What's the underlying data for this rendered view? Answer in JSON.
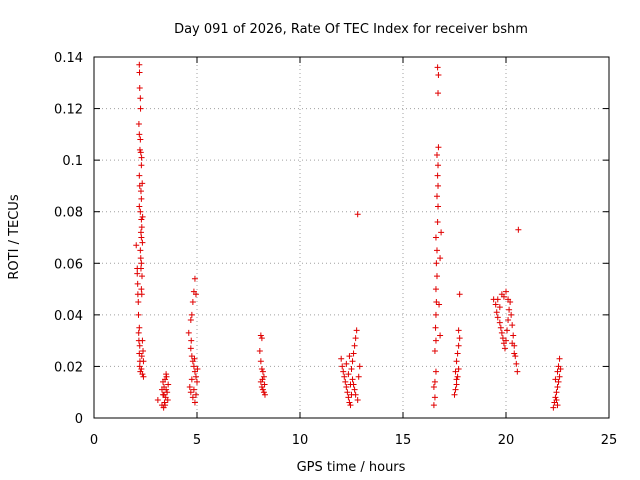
{
  "chart_data": {
    "type": "scatter",
    "title": "Day 091 of 2026, Rate Of TEC Index for receiver bshm",
    "xlabel": "GPS time / hours",
    "ylabel": "ROTI / TECUs",
    "xlim": [
      0,
      25
    ],
    "ylim": [
      0,
      0.14
    ],
    "xticks": [
      0,
      5,
      10,
      15,
      20,
      25
    ],
    "yticks": [
      0,
      0.02,
      0.04,
      0.06,
      0.08,
      0.1,
      0.12,
      0.14
    ],
    "xtick_labels": [
      "0",
      "5",
      "10",
      "15",
      "20",
      "25"
    ],
    "ytick_labels": [
      "0",
      "0.02",
      "0.04",
      "0.06",
      "0.08",
      "0.1",
      "0.12",
      "0.14"
    ],
    "grid": true,
    "marker": "+",
    "color": "#e00000",
    "series": [
      {
        "points": [
          [
            2.05,
            0.067
          ],
          [
            2.1,
            0.058
          ],
          [
            2.12,
            0.052
          ],
          [
            2.15,
            0.045
          ],
          [
            2.18,
            0.03
          ],
          [
            2.2,
            0.025
          ],
          [
            2.22,
            0.02
          ],
          [
            2.25,
            0.018
          ],
          [
            2.1,
            0.056
          ],
          [
            2.13,
            0.048
          ],
          [
            2.16,
            0.04
          ],
          [
            2.2,
            0.035
          ],
          [
            2.22,
            0.028
          ],
          [
            2.17,
            0.033
          ],
          [
            2.23,
            0.022
          ],
          [
            2.2,
            0.137
          ],
          [
            2.21,
            0.134
          ],
          [
            2.22,
            0.128
          ],
          [
            2.25,
            0.124
          ],
          [
            2.26,
            0.12
          ],
          [
            2.18,
            0.114
          ],
          [
            2.2,
            0.11
          ],
          [
            2.25,
            0.108
          ],
          [
            2.23,
            0.104
          ],
          [
            2.27,
            0.103
          ],
          [
            2.3,
            0.098
          ],
          [
            2.2,
            0.094
          ],
          [
            2.22,
            0.09
          ],
          [
            2.28,
            0.088
          ],
          [
            2.3,
            0.085
          ],
          [
            2.2,
            0.082
          ],
          [
            2.25,
            0.08
          ],
          [
            2.3,
            0.077
          ],
          [
            2.32,
            0.074
          ],
          [
            2.28,
            0.072
          ],
          [
            2.3,
            0.07
          ],
          [
            2.35,
            0.068
          ],
          [
            2.25,
            0.065
          ],
          [
            2.3,
            0.06
          ],
          [
            2.28,
            0.058
          ],
          [
            2.33,
            0.055
          ],
          [
            2.3,
            0.05
          ],
          [
            2.32,
            0.048
          ],
          [
            2.35,
            0.03
          ],
          [
            2.38,
            0.026
          ],
          [
            2.4,
            0.022
          ],
          [
            2.3,
            0.019
          ],
          [
            2.35,
            0.017
          ],
          [
            2.4,
            0.016
          ],
          [
            2.32,
            0.024
          ],
          [
            2.27,
            0.062
          ],
          [
            2.36,
            0.078
          ],
          [
            2.34,
            0.091
          ],
          [
            2.31,
            0.101
          ],
          [
            3.1,
            0.007
          ],
          [
            3.3,
            0.005
          ],
          [
            3.35,
            0.009
          ],
          [
            3.4,
            0.012
          ],
          [
            3.45,
            0.015
          ],
          [
            3.5,
            0.017
          ],
          [
            3.3,
            0.011
          ],
          [
            3.38,
            0.004
          ],
          [
            3.42,
            0.006
          ],
          [
            3.48,
            0.008
          ],
          [
            3.55,
            0.01
          ],
          [
            3.6,
            0.013
          ],
          [
            3.52,
            0.016
          ],
          [
            3.35,
            0.014
          ],
          [
            3.45,
            0.005
          ],
          [
            3.58,
            0.007
          ],
          [
            3.4,
            0.009
          ],
          [
            3.5,
            0.011
          ],
          [
            4.6,
            0.033
          ],
          [
            4.7,
            0.038
          ],
          [
            4.75,
            0.04
          ],
          [
            4.8,
            0.045
          ],
          [
            4.85,
            0.049
          ],
          [
            4.9,
            0.054
          ],
          [
            4.95,
            0.048
          ],
          [
            4.7,
            0.027
          ],
          [
            4.75,
            0.024
          ],
          [
            4.8,
            0.022
          ],
          [
            4.85,
            0.02
          ],
          [
            4.9,
            0.018
          ],
          [
            4.95,
            0.016
          ],
          [
            5.0,
            0.014
          ],
          [
            4.65,
            0.012
          ],
          [
            4.7,
            0.01
          ],
          [
            4.8,
            0.008
          ],
          [
            4.9,
            0.006
          ],
          [
            4.75,
            0.015
          ],
          [
            4.85,
            0.011
          ],
          [
            4.95,
            0.009
          ],
          [
            4.72,
            0.03
          ],
          [
            4.88,
            0.023
          ],
          [
            5.02,
            0.019
          ],
          [
            8.1,
            0.032
          ],
          [
            8.15,
            0.031
          ],
          [
            8.05,
            0.026
          ],
          [
            8.1,
            0.022
          ],
          [
            8.15,
            0.019
          ],
          [
            8.2,
            0.018
          ],
          [
            8.25,
            0.016
          ],
          [
            8.1,
            0.014
          ],
          [
            8.15,
            0.012
          ],
          [
            8.2,
            0.011
          ],
          [
            8.25,
            0.01
          ],
          [
            8.3,
            0.009
          ],
          [
            8.18,
            0.015
          ],
          [
            8.28,
            0.013
          ],
          [
            12.0,
            0.023
          ],
          [
            12.05,
            0.02
          ],
          [
            12.1,
            0.018
          ],
          [
            12.15,
            0.016
          ],
          [
            12.2,
            0.014
          ],
          [
            12.25,
            0.012
          ],
          [
            12.3,
            0.01
          ],
          [
            12.35,
            0.008
          ],
          [
            12.4,
            0.006
          ],
          [
            12.45,
            0.005
          ],
          [
            12.5,
            0.019
          ],
          [
            12.55,
            0.022
          ],
          [
            12.6,
            0.025
          ],
          [
            12.65,
            0.028
          ],
          [
            12.7,
            0.031
          ],
          [
            12.75,
            0.034
          ],
          [
            12.55,
            0.015
          ],
          [
            12.6,
            0.013
          ],
          [
            12.65,
            0.011
          ],
          [
            12.7,
            0.009
          ],
          [
            12.8,
            0.007
          ],
          [
            12.85,
            0.016
          ],
          [
            12.9,
            0.02
          ],
          [
            12.25,
            0.021
          ],
          [
            12.35,
            0.017
          ],
          [
            12.45,
            0.013
          ],
          [
            12.5,
            0.009
          ],
          [
            12.4,
            0.024
          ],
          [
            12.8,
            0.079
          ],
          [
            16.5,
            0.005
          ],
          [
            16.55,
            0.008
          ],
          [
            16.5,
            0.012
          ],
          [
            16.55,
            0.014
          ],
          [
            16.6,
            0.018
          ],
          [
            16.55,
            0.026
          ],
          [
            16.6,
            0.03
          ],
          [
            16.58,
            0.035
          ],
          [
            16.6,
            0.04
          ],
          [
            16.62,
            0.045
          ],
          [
            16.6,
            0.05
          ],
          [
            16.65,
            0.055
          ],
          [
            16.62,
            0.06
          ],
          [
            16.65,
            0.065
          ],
          [
            16.6,
            0.07
          ],
          [
            16.68,
            0.076
          ],
          [
            16.7,
            0.082
          ],
          [
            16.65,
            0.086
          ],
          [
            16.7,
            0.09
          ],
          [
            16.68,
            0.094
          ],
          [
            16.7,
            0.098
          ],
          [
            16.65,
            0.102
          ],
          [
            16.72,
            0.105
          ],
          [
            16.7,
            0.126
          ],
          [
            16.72,
            0.133
          ],
          [
            16.68,
            0.136
          ],
          [
            16.8,
            0.062
          ],
          [
            16.85,
            0.072
          ],
          [
            16.75,
            0.044
          ],
          [
            16.8,
            0.032
          ],
          [
            17.5,
            0.009
          ],
          [
            17.55,
            0.011
          ],
          [
            17.6,
            0.013
          ],
          [
            17.65,
            0.016
          ],
          [
            17.7,
            0.019
          ],
          [
            17.6,
            0.022
          ],
          [
            17.65,
            0.025
          ],
          [
            17.7,
            0.028
          ],
          [
            17.75,
            0.031
          ],
          [
            17.7,
            0.034
          ],
          [
            17.6,
            0.015
          ],
          [
            17.55,
            0.018
          ],
          [
            17.75,
            0.048
          ],
          [
            19.4,
            0.046
          ],
          [
            19.5,
            0.044
          ],
          [
            19.55,
            0.041
          ],
          [
            19.6,
            0.039
          ],
          [
            19.7,
            0.037
          ],
          [
            19.75,
            0.035
          ],
          [
            19.8,
            0.033
          ],
          [
            19.85,
            0.031
          ],
          [
            19.9,
            0.029
          ],
          [
            19.95,
            0.027
          ],
          [
            20.0,
            0.03
          ],
          [
            20.05,
            0.034
          ],
          [
            20.1,
            0.038
          ],
          [
            20.15,
            0.042
          ],
          [
            20.2,
            0.045
          ],
          [
            20.25,
            0.04
          ],
          [
            20.3,
            0.036
          ],
          [
            20.35,
            0.032
          ],
          [
            20.4,
            0.028
          ],
          [
            20.45,
            0.024
          ],
          [
            20.5,
            0.021
          ],
          [
            20.55,
            0.018
          ],
          [
            19.6,
            0.046
          ],
          [
            19.7,
            0.043
          ],
          [
            19.8,
            0.048
          ],
          [
            19.9,
            0.047
          ],
          [
            20.0,
            0.049
          ],
          [
            20.1,
            0.046
          ],
          [
            20.3,
            0.029
          ],
          [
            20.4,
            0.025
          ],
          [
            20.6,
            0.073
          ],
          [
            22.3,
            0.004
          ],
          [
            22.35,
            0.006
          ],
          [
            22.4,
            0.008
          ],
          [
            22.45,
            0.01
          ],
          [
            22.5,
            0.012
          ],
          [
            22.55,
            0.014
          ],
          [
            22.6,
            0.016
          ],
          [
            22.5,
            0.018
          ],
          [
            22.55,
            0.02
          ],
          [
            22.6,
            0.023
          ],
          [
            22.45,
            0.007
          ],
          [
            22.5,
            0.005
          ],
          [
            22.65,
            0.019
          ],
          [
            22.4,
            0.015
          ]
        ]
      }
    ]
  }
}
